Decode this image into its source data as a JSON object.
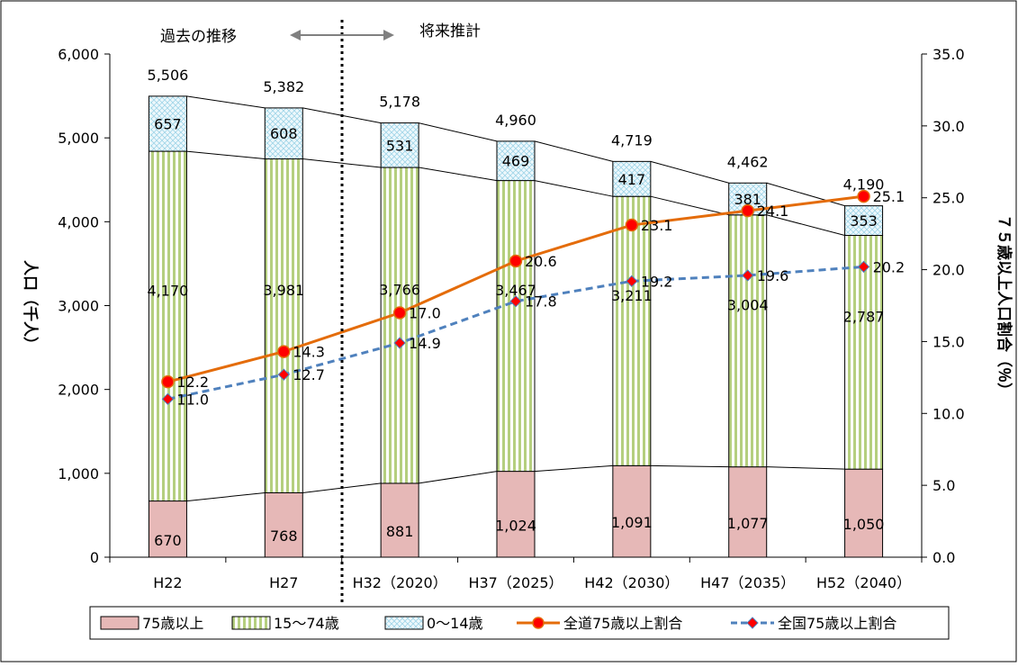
{
  "chart_data": {
    "type": "bar",
    "stacked": true,
    "categories": [
      "H22",
      "H27",
      "H32（2020）",
      "H37（2025）",
      "H42（2030）",
      "H47（2035）",
      "H52（2040）"
    ],
    "series": [
      {
        "name": "75歳以上",
        "type": "bar",
        "values": [
          670,
          768,
          881,
          1024,
          1091,
          1077,
          1050
        ],
        "value_labels": [
          "670",
          "768",
          "881",
          "1,024",
          "1,091",
          "1,077",
          "1,050"
        ],
        "color": "#e6b8b7"
      },
      {
        "name": "15〜74歳",
        "type": "bar",
        "values": [
          4170,
          3981,
          3766,
          3467,
          3211,
          3004,
          2787
        ],
        "value_labels": [
          "4,170",
          "3,981",
          "3,766",
          "3,467",
          "3,211",
          "3,004",
          "2,787"
        ],
        "color": "#c3d69b"
      },
      {
        "name": "0〜14歳",
        "type": "bar",
        "values": [
          657,
          608,
          531,
          469,
          417,
          381,
          353
        ],
        "value_labels": [
          "657",
          "608",
          "531",
          "469",
          "417",
          "381",
          "353"
        ],
        "color": "#dbeef4"
      },
      {
        "name": "全道75歳以上割合",
        "type": "line",
        "axis": "right",
        "values": [
          12.2,
          14.3,
          17.0,
          20.6,
          23.1,
          24.1,
          25.1
        ],
        "value_labels": [
          "12.2",
          "14.3",
          "17.0",
          "20.6",
          "23.1",
          "24.1",
          "25.1"
        ],
        "color": "#e46c0a"
      },
      {
        "name": "全国75歳以上割合",
        "type": "line",
        "axis": "right",
        "dashed": true,
        "values": [
          11.0,
          12.7,
          14.9,
          17.8,
          19.2,
          19.6,
          20.2
        ],
        "value_labels": [
          "11.0",
          "12.7",
          "14.9",
          "17.8",
          "19.2",
          "19.6",
          "20.2"
        ],
        "color": "#4f81bd"
      }
    ],
    "totals": [
      5506,
      5382,
      5178,
      4960,
      4719,
      4462,
      4190
    ],
    "total_labels": [
      "5,506",
      "5,382",
      "5,178",
      "4,960",
      "4,719",
      "4,462",
      "4,190"
    ],
    "ylabel": "人口（千人）",
    "y2label": "７５歳以上人口割合（％）",
    "ylim": [
      0,
      6000
    ],
    "y2lim": [
      0,
      35
    ],
    "yticks": [
      "0",
      "1,000",
      "2,000",
      "3,000",
      "4,000",
      "5,000",
      "6,000"
    ],
    "y2ticks": [
      "0.0",
      "5.0",
      "10.0",
      "15.0",
      "20.0",
      "25.0",
      "30.0",
      "35.0"
    ],
    "annotations": {
      "past": "過去の推移",
      "future": "将来推計"
    },
    "legend_position": "bottom",
    "colors": {
      "bar_outline": "#000000",
      "stripe": "#9bbb59",
      "hatch": "#9fd5e8",
      "marker_red": "#ff0000",
      "marker_fill": "#ff0000",
      "arrow": "#808080"
    }
  }
}
